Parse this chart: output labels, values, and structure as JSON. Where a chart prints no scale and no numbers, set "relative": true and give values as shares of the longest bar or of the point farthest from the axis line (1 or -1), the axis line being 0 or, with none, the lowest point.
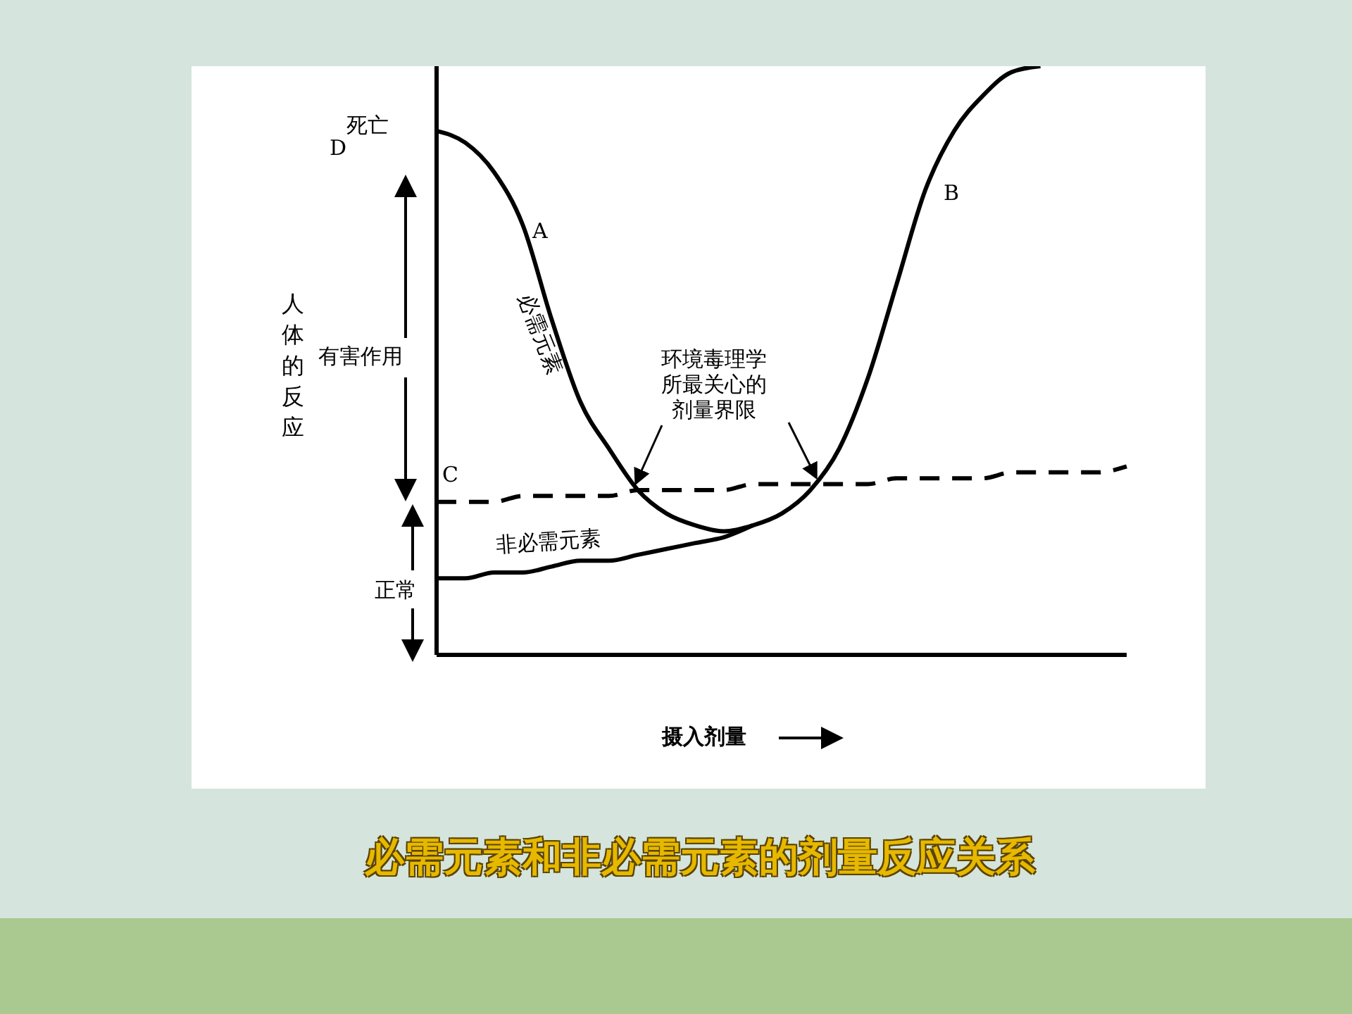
{
  "chart_data": {
    "type": "line",
    "title": "必需元素和非必需元素的剂量反应关系",
    "xlabel": "摄入剂量",
    "relative": true,
    "categories": [
      null,
      null,
      null,
      null,
      null,
      null,
      null,
      null,
      null,
      null,
      null,
      null,
      null,
      null,
      null,
      null,
      null,
      null,
      null,
      null,
      null,
      null,
      null,
      null,
      null
    ],
    "series": [
      {
        "name": "必需元素",
        "color": "#000000",
        "values": [
          0.89,
          0.87,
          0.82,
          0.73,
          0.57,
          0.43,
          0.35,
          0.28,
          0.24,
          0.22,
          0.21,
          0.22,
          0.24,
          0.28,
          0.35,
          0.47,
          0.63,
          0.79,
          0.89,
          0.95,
          0.99,
          1,
          null,
          null,
          null
        ]
      },
      {
        "name": "非必需元素",
        "color": "#000000",
        "values": [
          0.13,
          0.13,
          0.14,
          0.14,
          0.15,
          0.16,
          0.16,
          0.17,
          0.18,
          0.19,
          0.2,
          0.22,
          null,
          null,
          null,
          null,
          null,
          null,
          null,
          null,
          null,
          null,
          null,
          null,
          null
        ]
      },
      {
        "color": "#000000",
        "line_style": "dashed",
        "values": [
          0.26,
          0.26,
          0.26,
          0.27,
          0.27,
          0.27,
          0.27,
          0.28,
          0.28,
          0.28,
          0.28,
          0.29,
          0.29,
          0.29,
          0.29,
          0.29,
          0.3,
          0.3,
          0.3,
          0.3,
          0.31,
          0.31,
          0.31,
          0.31,
          0.32
        ]
      }
    ],
    "annotations": [
      "人体的反应",
      "死亡",
      "D",
      "有害作用",
      "C",
      "正常",
      "A",
      "B",
      "环境毒理学所最关心的剂量界限"
    ],
    "marker": "none",
    "line_style": "solid",
    "grid": false,
    "legend": false
  }
}
